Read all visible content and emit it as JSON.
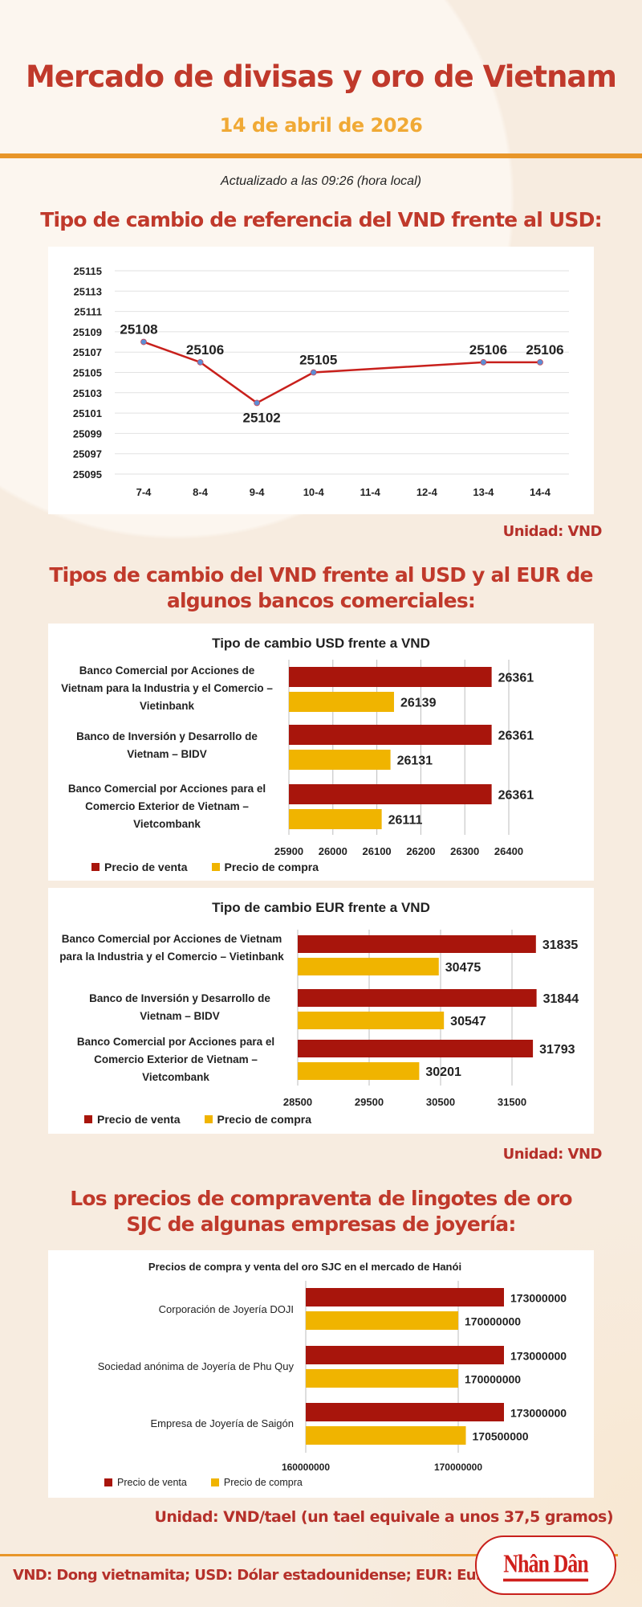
{
  "header": {
    "title": "Mercado de divisas y oro de Vietnam",
    "date": "14 de abril de 2026",
    "updated": "Actualizado a las 09:26 (hora local)"
  },
  "sections": {
    "reference": {
      "heading": "Tipo de cambio de referencia del VND frente al USD:",
      "unit": "Unidad: VND"
    },
    "banks": {
      "heading_line1": "Tipos de cambio del VND frente al USD y al EUR de",
      "heading_line2": "algunos bancos comerciales:",
      "unit": "Unidad: VND"
    },
    "gold": {
      "heading_line1": "Los precios de compraventa de lingotes de oro",
      "heading_line2": "SJC de algunas empresas de joyería:",
      "unit": "Unidad: VND/tael (un tael equivale a unos 37,5 gramos)"
    }
  },
  "footer": {
    "note": "VND: Dong vietnamita; USD: Dólar estadounidense; EUR: Euro",
    "logo": "Nhân Dân"
  },
  "colors": {
    "title": "#c0392b",
    "date": "#f0a935",
    "sell": "#a8150c",
    "buy": "#f0b400",
    "line": "#c8201c",
    "marker": "#5b8ed6"
  },
  "chart_data": [
    {
      "type": "line",
      "title": "",
      "categories": [
        "7-4",
        "8-4",
        "9-4",
        "10-4",
        "11-4",
        "12-4",
        "13-4",
        "14-4"
      ],
      "values": [
        25108,
        25106,
        25102,
        25105,
        null,
        null,
        25106,
        25106
      ],
      "ylim": [
        25095,
        25115
      ],
      "yticks": [
        25095,
        25097,
        25099,
        25101,
        25103,
        25105,
        25107,
        25109,
        25111,
        25113,
        25115
      ],
      "grid": true
    },
    {
      "type": "bar",
      "orientation": "horizontal",
      "title": "Tipo de cambio USD frente a VND",
      "categories": [
        "Banco Comercial por Acciones de Vietnam para la Industria y el Comercio – Vietinbank",
        "Banco de Inversión y Desarrollo de Vietnam – BIDV",
        "Banco Comercial por Acciones para el Comercio Exterior de Vietnam – Vietcombank"
      ],
      "series": [
        {
          "name": "Precio de venta",
          "values": [
            26361,
            26361,
            26361
          ]
        },
        {
          "name": "Precio de compra",
          "values": [
            26139,
            26131,
            26111
          ]
        }
      ],
      "xlim": [
        25900,
        26400
      ],
      "xticks": [
        25900,
        26000,
        26100,
        26200,
        26300,
        26400
      ],
      "legend": "bottom",
      "grid": true
    },
    {
      "type": "bar",
      "orientation": "horizontal",
      "title": "Tipo de cambio EUR frente a VND",
      "categories": [
        "Banco Comercial por Acciones de Vietnam para la Industria y el Comercio – Vietinbank",
        "Banco de Inversión y Desarrollo de Vietnam – BIDV",
        "Banco Comercial por Acciones para el Comercio Exterior de Vietnam – Vietcombank"
      ],
      "series": [
        {
          "name": "Precio de venta",
          "values": [
            31835,
            31844,
            31793
          ]
        },
        {
          "name": "Precio de compra",
          "values": [
            30475,
            30547,
            30201
          ]
        }
      ],
      "xlim": [
        28500,
        32000
      ],
      "xticks": [
        28500,
        29500,
        30500,
        31500
      ],
      "legend": "bottom",
      "grid": true
    },
    {
      "type": "bar",
      "orientation": "horizontal",
      "title": "Precios de compra y venta del oro SJC en el mercado de Hanói",
      "categories": [
        "Corporación de Joyería DOJI",
        "Sociedad anónima de Joyería de Phu Quy",
        "Empresa de Joyería de Saigón"
      ],
      "series": [
        {
          "name": "Precio de venta",
          "values": [
            173000000,
            173000000,
            173000000
          ]
        },
        {
          "name": "Precio de compra",
          "values": [
            170000000,
            170000000,
            170500000
          ]
        }
      ],
      "xlim": [
        160000000,
        175000000
      ],
      "xticks": [
        160000000,
        170000000
      ],
      "legend": "bottom",
      "grid": true
    }
  ]
}
